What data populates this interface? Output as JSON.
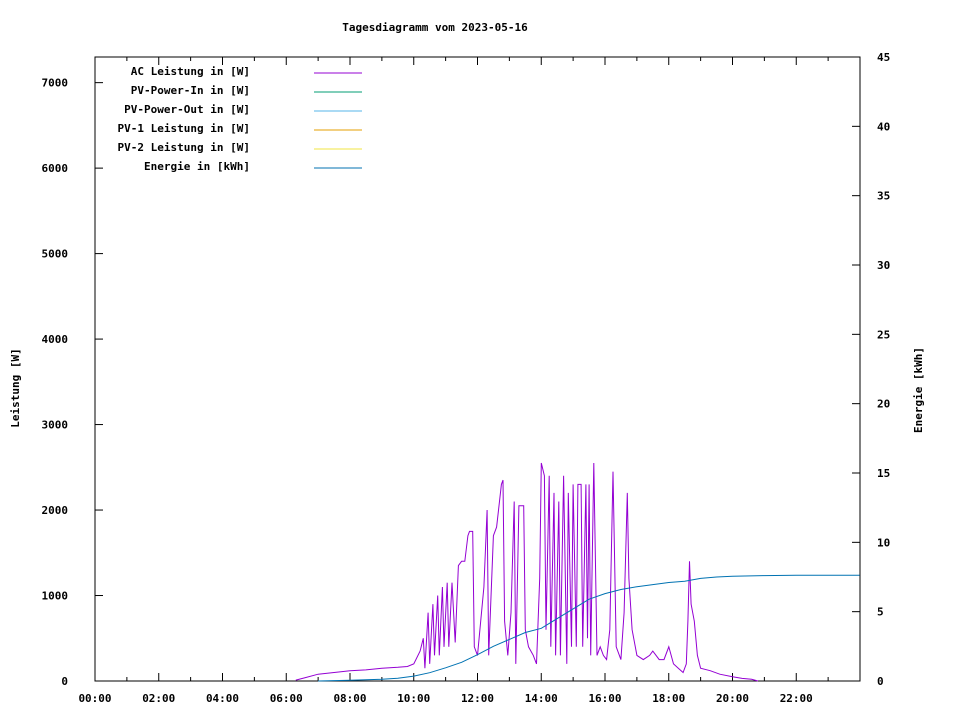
{
  "chart_data": {
    "type": "line",
    "title": "Tagesdiagramm vom 2023-05-16",
    "xlabel": "",
    "ylabel": "Leistung [W]",
    "y2label": "Energie [kWh]",
    "xlim": [
      0,
      24
    ],
    "ylim": [
      0,
      7300
    ],
    "y2lim": [
      0,
      45
    ],
    "xticks": [
      {
        "v": 0,
        "label": "00:00"
      },
      {
        "v": 2,
        "label": "02:00"
      },
      {
        "v": 4,
        "label": "04:00"
      },
      {
        "v": 6,
        "label": "06:00"
      },
      {
        "v": 8,
        "label": "08:00"
      },
      {
        "v": 10,
        "label": "10:00"
      },
      {
        "v": 12,
        "label": "12:00"
      },
      {
        "v": 14,
        "label": "14:00"
      },
      {
        "v": 16,
        "label": "16:00"
      },
      {
        "v": 18,
        "label": "18:00"
      },
      {
        "v": 20,
        "label": "20:00"
      },
      {
        "v": 22,
        "label": "22:00"
      }
    ],
    "yticks": [
      0,
      1000,
      2000,
      3000,
      4000,
      5000,
      6000,
      7000
    ],
    "y2ticks": [
      0,
      5,
      10,
      15,
      20,
      25,
      30,
      35,
      40,
      45
    ],
    "grid": false,
    "legend_position": "top-left",
    "series": [
      {
        "name": "AC Leistung in [W]",
        "axis": "y",
        "color": "#9400d3",
        "points": [
          [
            6.3,
            10
          ],
          [
            6.6,
            40
          ],
          [
            7.0,
            80
          ],
          [
            7.5,
            100
          ],
          [
            8.0,
            120
          ],
          [
            8.5,
            130
          ],
          [
            9.0,
            150
          ],
          [
            9.5,
            160
          ],
          [
            9.8,
            170
          ],
          [
            10.0,
            200
          ],
          [
            10.2,
            350
          ],
          [
            10.3,
            500
          ],
          [
            10.35,
            150
          ],
          [
            10.45,
            800
          ],
          [
            10.5,
            200
          ],
          [
            10.6,
            900
          ],
          [
            10.65,
            300
          ],
          [
            10.75,
            1000
          ],
          [
            10.8,
            300
          ],
          [
            10.9,
            1100
          ],
          [
            10.95,
            400
          ],
          [
            11.05,
            1150
          ],
          [
            11.1,
            400
          ],
          [
            11.2,
            1150
          ],
          [
            11.3,
            450
          ],
          [
            11.4,
            1350
          ],
          [
            11.5,
            1400
          ],
          [
            11.6,
            1400
          ],
          [
            11.7,
            1700
          ],
          [
            11.75,
            1750
          ],
          [
            11.85,
            1750
          ],
          [
            11.9,
            400
          ],
          [
            12.0,
            300
          ],
          [
            12.1,
            700
          ],
          [
            12.2,
            1100
          ],
          [
            12.3,
            2000
          ],
          [
            12.35,
            300
          ],
          [
            12.5,
            1700
          ],
          [
            12.6,
            1800
          ],
          [
            12.75,
            2300
          ],
          [
            12.8,
            2350
          ],
          [
            12.85,
            700
          ],
          [
            12.95,
            300
          ],
          [
            13.05,
            800
          ],
          [
            13.15,
            2100
          ],
          [
            13.2,
            200
          ],
          [
            13.3,
            2050
          ],
          [
            13.4,
            2050
          ],
          [
            13.45,
            2050
          ],
          [
            13.5,
            600
          ],
          [
            13.6,
            400
          ],
          [
            13.75,
            300
          ],
          [
            13.85,
            200
          ],
          [
            13.95,
            1200
          ],
          [
            14.0,
            2550
          ],
          [
            14.1,
            2400
          ],
          [
            14.15,
            600
          ],
          [
            14.25,
            2400
          ],
          [
            14.3,
            400
          ],
          [
            14.4,
            2200
          ],
          [
            14.45,
            300
          ],
          [
            14.55,
            2100
          ],
          [
            14.6,
            300
          ],
          [
            14.7,
            2400
          ],
          [
            14.8,
            200
          ],
          [
            14.85,
            2200
          ],
          [
            14.95,
            400
          ],
          [
            15.0,
            2300
          ],
          [
            15.1,
            400
          ],
          [
            15.15,
            2300
          ],
          [
            15.25,
            2300
          ],
          [
            15.3,
            400
          ],
          [
            15.4,
            2300
          ],
          [
            15.45,
            500
          ],
          [
            15.5,
            2300
          ],
          [
            15.55,
            300
          ],
          [
            15.65,
            2550
          ],
          [
            15.75,
            300
          ],
          [
            15.85,
            400
          ],
          [
            15.95,
            300
          ],
          [
            16.05,
            250
          ],
          [
            16.15,
            600
          ],
          [
            16.25,
            2450
          ],
          [
            16.35,
            400
          ],
          [
            16.5,
            250
          ],
          [
            16.6,
            800
          ],
          [
            16.7,
            2200
          ],
          [
            16.75,
            1200
          ],
          [
            16.85,
            600
          ],
          [
            17.0,
            300
          ],
          [
            17.2,
            250
          ],
          [
            17.4,
            300
          ],
          [
            17.5,
            350
          ],
          [
            17.7,
            250
          ],
          [
            17.85,
            250
          ],
          [
            18.0,
            400
          ],
          [
            18.15,
            200
          ],
          [
            18.3,
            150
          ],
          [
            18.45,
            100
          ],
          [
            18.55,
            200
          ],
          [
            18.6,
            700
          ],
          [
            18.65,
            1400
          ],
          [
            18.7,
            900
          ],
          [
            18.8,
            700
          ],
          [
            18.9,
            300
          ],
          [
            19.0,
            150
          ],
          [
            19.3,
            120
          ],
          [
            19.6,
            80
          ],
          [
            20.0,
            50
          ],
          [
            20.3,
            30
          ],
          [
            20.6,
            20
          ],
          [
            20.8,
            0
          ]
        ]
      },
      {
        "name": "PV-Power-In in [W]",
        "axis": "y",
        "color": "#009e73",
        "points": []
      },
      {
        "name": "PV-Power-Out in [W]",
        "axis": "y",
        "color": "#56b4e9",
        "points": []
      },
      {
        "name": "PV-1 Leistung in [W]",
        "axis": "y",
        "color": "#e69f00",
        "points": []
      },
      {
        "name": "PV-2 Leistung in [W]",
        "axis": "y",
        "color": "#f0e442",
        "points": []
      },
      {
        "name": "Energie in [kWh]",
        "axis": "y2",
        "color": "#0072b2",
        "points": [
          [
            7.0,
            0
          ],
          [
            8.0,
            0.05
          ],
          [
            9.0,
            0.12
          ],
          [
            9.5,
            0.2
          ],
          [
            10.0,
            0.35
          ],
          [
            10.5,
            0.6
          ],
          [
            11.0,
            0.95
          ],
          [
            11.5,
            1.35
          ],
          [
            12.0,
            1.9
          ],
          [
            12.5,
            2.5
          ],
          [
            13.0,
            3.0
          ],
          [
            13.5,
            3.5
          ],
          [
            14.0,
            3.8
          ],
          [
            14.5,
            4.5
          ],
          [
            15.0,
            5.2
          ],
          [
            15.5,
            5.9
          ],
          [
            16.0,
            6.3
          ],
          [
            16.5,
            6.6
          ],
          [
            17.0,
            6.8
          ],
          [
            17.5,
            6.95
          ],
          [
            18.0,
            7.1
          ],
          [
            18.5,
            7.2
          ],
          [
            19.0,
            7.4
          ],
          [
            19.5,
            7.5
          ],
          [
            20.0,
            7.55
          ],
          [
            21.0,
            7.6
          ],
          [
            22.0,
            7.62
          ],
          [
            23.99,
            7.63
          ]
        ]
      }
    ]
  }
}
